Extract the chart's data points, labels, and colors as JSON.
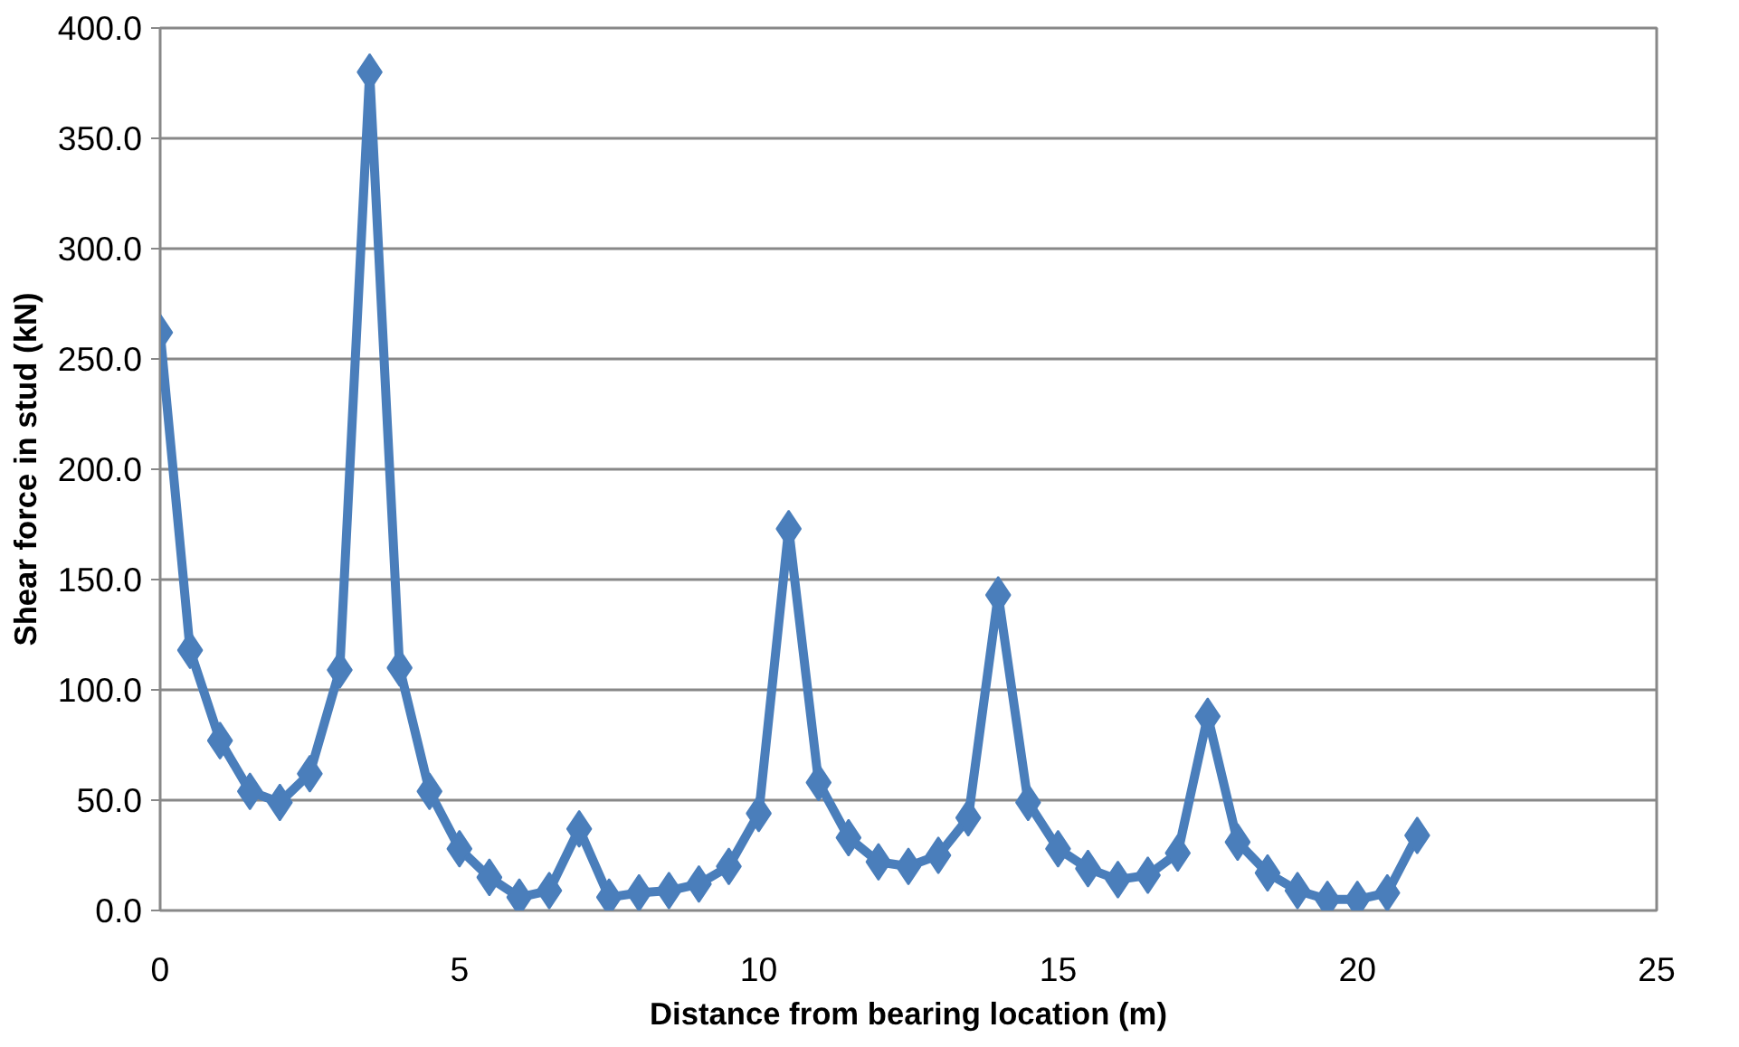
{
  "chart_data": {
    "type": "line",
    "xlabel": "Distance from bearing location (m)",
    "ylabel": "Shear force in stud (kN)",
    "x": [
      0,
      0.5,
      1,
      1.5,
      2,
      2.5,
      3,
      3.5,
      4,
      4.5,
      5,
      5.5,
      6,
      6.5,
      7,
      7.5,
      8,
      8.5,
      9,
      9.5,
      10,
      10.5,
      11,
      11.5,
      12,
      12.5,
      13,
      13.5,
      14,
      14.5,
      15,
      15.5,
      16,
      16.5,
      17,
      17.5,
      18,
      18.5,
      19,
      19.5,
      20,
      20.5,
      21
    ],
    "series": [
      {
        "color": "#4a7ebb",
        "values": [
          262,
          118,
          77,
          54,
          49,
          62,
          109,
          380,
          110,
          54,
          28,
          15,
          6,
          9,
          37,
          6,
          8,
          9,
          12,
          20,
          44,
          173,
          58,
          33,
          22,
          20,
          25,
          42,
          143,
          49,
          28,
          19,
          14,
          16,
          26,
          88,
          31,
          17,
          9,
          5,
          5,
          8,
          34
        ]
      }
    ],
    "xlim": [
      0,
      25
    ],
    "xticks": [
      0,
      5,
      10,
      15,
      20,
      25
    ],
    "ylim": [
      0,
      400
    ],
    "yticks": [
      {
        "value": 0,
        "label": "0.0"
      },
      {
        "value": 50,
        "label": "50.0"
      },
      {
        "value": 100,
        "label": "100.0"
      },
      {
        "value": 150,
        "label": "150.0"
      },
      {
        "value": 200,
        "label": "200.0"
      },
      {
        "value": 250,
        "label": "250.0"
      },
      {
        "value": 300,
        "label": "300.0"
      },
      {
        "value": 350,
        "label": "350.0"
      },
      {
        "value": 400,
        "label": "400.0"
      }
    ],
    "grid": "y",
    "marker": "diamond",
    "line_style": "solid"
  }
}
